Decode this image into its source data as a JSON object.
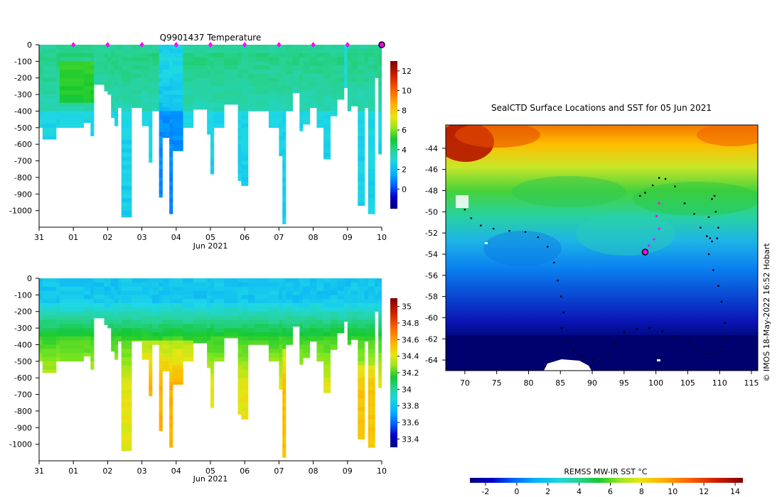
{
  "colors": {
    "ocean_colormap": [
      "#00007f",
      "#0000c8",
      "#0046ff",
      "#00a0ff",
      "#1ed8e6",
      "#28d296",
      "#14c832",
      "#82e61e",
      "#e6e614",
      "#ffb400",
      "#ff6400",
      "#d21e00",
      "#7f0000"
    ]
  },
  "chart_data": [
    {
      "id": "temperature-section",
      "type": "heatmap",
      "title": "Q9901437  Temperature",
      "xlabel": "Jun 2021",
      "ylabel": "",
      "x_ticks": [
        "31",
        "01",
        "02",
        "03",
        "04",
        "05",
        "06",
        "07",
        "08",
        "09",
        "10"
      ],
      "x_range": [
        31,
        41
      ],
      "y_ticks": [
        0,
        -100,
        -200,
        -300,
        -400,
        -500,
        -600,
        -700,
        -800,
        -900,
        -1000
      ],
      "ylim": [
        -1100,
        0
      ],
      "colorbar": {
        "ticks": [
          0,
          2,
          4,
          6,
          8,
          10,
          12
        ],
        "range": [
          -2,
          13
        ]
      },
      "surface_markers_day": [
        32,
        33,
        34,
        35,
        36,
        37,
        38,
        39,
        40
      ],
      "last_marker_day": 41,
      "profiles": [
        {
          "day": 31.0,
          "end": 31.1,
          "depth": 500
        },
        {
          "day": 31.1,
          "end": 31.5,
          "depth": 570
        },
        {
          "day": 31.5,
          "end": 31.6,
          "depth": 500
        },
        {
          "day": 31.6,
          "end": 32.3,
          "depth": 500
        },
        {
          "day": 32.3,
          "end": 32.5,
          "depth": 470
        },
        {
          "day": 32.5,
          "end": 32.6,
          "depth": 550
        },
        {
          "day": 32.6,
          "end": 32.9,
          "depth": 240
        },
        {
          "day": 32.9,
          "end": 33.0,
          "depth": 280
        },
        {
          "day": 33.0,
          "end": 33.1,
          "depth": 300
        },
        {
          "day": 33.1,
          "end": 33.2,
          "depth": 440
        },
        {
          "day": 33.2,
          "end": 33.3,
          "depth": 490
        },
        {
          "day": 33.3,
          "end": 33.4,
          "depth": 380
        },
        {
          "day": 33.4,
          "end": 33.7,
          "depth": 1040
        },
        {
          "day": 33.7,
          "end": 34.0,
          "depth": 380
        },
        {
          "day": 34.0,
          "end": 34.2,
          "depth": 490
        },
        {
          "day": 34.2,
          "end": 34.3,
          "depth": 710
        },
        {
          "day": 34.3,
          "end": 34.5,
          "depth": 400
        },
        {
          "day": 34.5,
          "end": 34.6,
          "depth": 920
        },
        {
          "day": 34.6,
          "end": 34.8,
          "depth": 560
        },
        {
          "day": 34.8,
          "end": 34.9,
          "depth": 1020
        },
        {
          "day": 34.9,
          "end": 35.2,
          "depth": 640
        },
        {
          "day": 35.2,
          "end": 35.5,
          "depth": 500
        },
        {
          "day": 35.5,
          "end": 35.9,
          "depth": 390
        },
        {
          "day": 35.9,
          "end": 36.0,
          "depth": 540
        },
        {
          "day": 36.0,
          "end": 36.1,
          "depth": 780
        },
        {
          "day": 36.1,
          "end": 36.4,
          "depth": 500
        },
        {
          "day": 36.4,
          "end": 36.8,
          "depth": 360
        },
        {
          "day": 36.8,
          "end": 36.9,
          "depth": 820
        },
        {
          "day": 36.9,
          "end": 37.1,
          "depth": 850
        },
        {
          "day": 37.1,
          "end": 37.3,
          "depth": 400
        },
        {
          "day": 37.3,
          "end": 37.7,
          "depth": 400
        },
        {
          "day": 37.7,
          "end": 38.0,
          "depth": 500
        },
        {
          "day": 38.0,
          "end": 38.1,
          "depth": 670
        },
        {
          "day": 38.1,
          "end": 38.2,
          "depth": 1080
        },
        {
          "day": 38.2,
          "end": 38.4,
          "depth": 400
        },
        {
          "day": 38.4,
          "end": 38.6,
          "depth": 290
        },
        {
          "day": 38.6,
          "end": 38.7,
          "depth": 520
        },
        {
          "day": 38.7,
          "end": 38.9,
          "depth": 480
        },
        {
          "day": 38.9,
          "end": 39.1,
          "depth": 380
        },
        {
          "day": 39.1,
          "end": 39.3,
          "depth": 500
        },
        {
          "day": 39.3,
          "end": 39.5,
          "depth": 690
        },
        {
          "day": 39.5,
          "end": 39.7,
          "depth": 430
        },
        {
          "day": 39.7,
          "end": 39.9,
          "depth": 330
        },
        {
          "day": 39.9,
          "end": 40.0,
          "depth": 260
        },
        {
          "day": 40.0,
          "end": 40.1,
          "depth": 400
        },
        {
          "day": 40.1,
          "end": 40.3,
          "depth": 370
        },
        {
          "day": 40.3,
          "end": 40.5,
          "depth": 970
        },
        {
          "day": 40.5,
          "end": 40.6,
          "depth": 380
        },
        {
          "day": 40.6,
          "end": 40.8,
          "depth": 1020
        },
        {
          "day": 40.8,
          "end": 40.9,
          "depth": 200
        },
        {
          "day": 40.9,
          "end": 41.0,
          "depth": 660
        }
      ]
    },
    {
      "id": "salinity-section",
      "type": "heatmap",
      "title": "",
      "xlabel": "Jun 2021",
      "x_ticks": [
        "31",
        "01",
        "02",
        "03",
        "04",
        "05",
        "06",
        "07",
        "08",
        "09",
        "10"
      ],
      "x_range": [
        31,
        41
      ],
      "y_ticks": [
        0,
        -100,
        -200,
        -300,
        -400,
        -500,
        -600,
        -700,
        -800,
        -900,
        -1000
      ],
      "ylim": [
        -1100,
        0
      ],
      "colorbar": {
        "ticks": [
          33.4,
          33.6,
          33.8,
          34,
          34.2,
          34.4,
          34.6,
          34.8,
          35
        ],
        "range": [
          33.3,
          35.1
        ]
      }
    },
    {
      "id": "sst-map",
      "type": "heatmap",
      "title": "SealCTD Surface Locations and SST for 05 Jun 2021",
      "xlabel": "",
      "ylabel": "",
      "x_ticks": [
        70,
        75,
        80,
        85,
        90,
        95,
        100,
        105,
        110,
        115
      ],
      "x_range": [
        67,
        116
      ],
      "y_ticks": [
        -44,
        -46,
        -48,
        -50,
        -52,
        -54,
        -56,
        -58,
        -60,
        -62,
        -64
      ],
      "y_range": [
        -65,
        -41.8
      ],
      "colorbar": {
        "label": "REMSS MW-IR SST °C",
        "ticks": [
          -2,
          0,
          2,
          4,
          6,
          8,
          10,
          12,
          14
        ],
        "range": [
          -3,
          14.5
        ]
      },
      "track": [
        [
          97.5,
          -48.5
        ],
        [
          98.3,
          -48.2
        ],
        [
          99.5,
          -47.5
        ],
        [
          100.5,
          -46.8
        ],
        [
          101.5,
          -46.9
        ],
        [
          103,
          -47.6
        ],
        [
          104.5,
          -49.2
        ],
        [
          106,
          -50.2
        ],
        [
          107,
          -51.5
        ],
        [
          108,
          -52.3
        ],
        [
          108.5,
          -52.5
        ],
        [
          108.3,
          -50.5
        ],
        [
          108.8,
          -48.8
        ],
        [
          109.2,
          -48.5
        ],
        [
          109.4,
          -50
        ],
        [
          109.8,
          -51.5
        ],
        [
          109.6,
          -52.5
        ],
        [
          108.8,
          -52.8
        ],
        [
          108.3,
          -54
        ],
        [
          109,
          -55.5
        ],
        [
          109.8,
          -57
        ],
        [
          110.3,
          -58.5
        ],
        [
          110.8,
          -60.5
        ],
        [
          111,
          -61.8
        ],
        [
          110.3,
          -62.8
        ],
        [
          109.2,
          -63.4
        ],
        [
          108,
          -63.4
        ],
        [
          106.5,
          -63
        ],
        [
          105,
          -62.4
        ],
        [
          103,
          -61.8
        ],
        [
          101,
          -61.3
        ],
        [
          99,
          -61
        ],
        [
          97,
          -61.1
        ],
        [
          95,
          -61.4
        ],
        [
          93.5,
          -62.5
        ],
        [
          92.5,
          -63.7
        ],
        [
          91.5,
          -64.1
        ],
        [
          90,
          -64
        ],
        [
          88.5,
          -63.6
        ],
        [
          87,
          -63.1
        ],
        [
          85.8,
          -62.4
        ],
        [
          85.2,
          -61
        ],
        [
          85.5,
          -59.5
        ],
        [
          85.1,
          -58
        ],
        [
          84.6,
          -56.5
        ],
        [
          84,
          -54.8
        ],
        [
          83,
          -53.3
        ],
        [
          81.5,
          -52.4
        ],
        [
          79.5,
          -51.9
        ],
        [
          77,
          -51.8
        ],
        [
          74.5,
          -51.6
        ],
        [
          72.5,
          -51.3
        ],
        [
          71,
          -50.6
        ],
        [
          70,
          -49.8
        ]
      ],
      "recent_track": [
        [
          100.5,
          -49.2
        ],
        [
          100.1,
          -50.4
        ],
        [
          100.5,
          -51.6
        ],
        [
          99.7,
          -52.6
        ],
        [
          98.9,
          -53.2
        ],
        [
          98.3,
          -53.8
        ]
      ],
      "current_position": [
        98.3,
        -53.8
      ]
    }
  ],
  "annotations": {
    "credit": "© IMOS 18-May-2022 16:52 Hobart"
  }
}
